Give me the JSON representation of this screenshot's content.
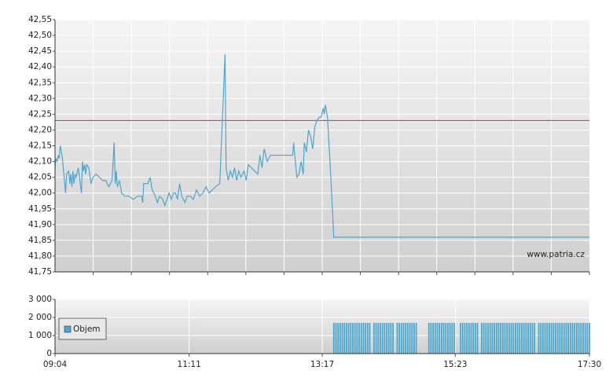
{
  "chart_data": [
    {
      "type": "line",
      "watermark": "www.patria.cz",
      "color": "#4da6cf",
      "reference_line": {
        "value": 42.23,
        "color": "#cc3333"
      },
      "xlim": [
        "09:04",
        "17:30"
      ],
      "ylim": [
        41.75,
        42.55
      ],
      "yticks": [
        {
          "value": 41.75,
          "label": "41,75"
        },
        {
          "value": 41.8,
          "label": "41,80"
        },
        {
          "value": 41.85,
          "label": "41,85"
        },
        {
          "value": 41.9,
          "label": "41,90"
        },
        {
          "value": 41.95,
          "label": "41,95"
        },
        {
          "value": 42.0,
          "label": "42,00"
        },
        {
          "value": 42.05,
          "label": "42,05"
        },
        {
          "value": 42.1,
          "label": "42,10"
        },
        {
          "value": 42.15,
          "label": "42,15"
        },
        {
          "value": 42.2,
          "label": "42,20"
        },
        {
          "value": 42.25,
          "label": "42,25"
        },
        {
          "value": 42.3,
          "label": "42,30"
        },
        {
          "value": 42.35,
          "label": "42,35"
        },
        {
          "value": 42.4,
          "label": "42,40"
        },
        {
          "value": 42.45,
          "label": "42,45"
        },
        {
          "value": 42.5,
          "label": "42,50"
        },
        {
          "value": 42.55,
          "label": "42,55"
        }
      ],
      "grid": true,
      "x": [
        "09:04",
        "09:05",
        "09:06",
        "09:07",
        "09:08",
        "09:09",
        "09:11",
        "09:14",
        "09:15",
        "09:17",
        "09:18",
        "09:19",
        "09:20",
        "09:21",
        "09:22",
        "09:23",
        "09:24",
        "09:26",
        "09:29",
        "09:30",
        "09:31",
        "09:32",
        "09:33",
        "09:34",
        "09:36",
        "09:38",
        "09:40",
        "09:43",
        "09:46",
        "09:49",
        "09:52",
        "09:55",
        "09:58",
        "10:00",
        "10:01",
        "10:02",
        "10:03",
        "10:05",
        "10:07",
        "10:10",
        "10:14",
        "10:18",
        "10:22",
        "10:26",
        "10:27",
        "10:28",
        "10:32",
        "10:34",
        "10:36",
        "10:39",
        "10:41",
        "10:43",
        "10:46",
        "10:48",
        "10:50",
        "10:52",
        "10:54",
        "10:56",
        "10:58",
        "11:00",
        "11:02",
        "11:04",
        "11:07",
        "11:09",
        "11:12",
        "11:15",
        "11:18",
        "11:21",
        "11:24",
        "11:27",
        "11:30",
        "11:33",
        "11:36",
        "11:40",
        "11:45",
        "11:46",
        "11:48",
        "11:50",
        "11:52",
        "11:54",
        "11:56",
        "11:58",
        "12:00",
        "12:03",
        "12:05",
        "12:07",
        "12:10",
        "12:13",
        "12:16",
        "12:18",
        "12:20",
        "12:22",
        "12:25",
        "12:28",
        "12:32",
        "12:49",
        "12:50",
        "12:51",
        "12:53",
        "12:55",
        "12:57",
        "12:59",
        "13:00",
        "13:02",
        "13:04",
        "13:06",
        "13:08",
        "13:10",
        "13:12",
        "13:14",
        "13:16",
        "13:18",
        "13:19",
        "13:20",
        "13:22",
        "13:25",
        "13:28",
        "17:30"
      ],
      "values": [
        42.08,
        42.11,
        42.1,
        42.12,
        42.11,
        42.15,
        42.11,
        42.0,
        42.06,
        42.07,
        42.03,
        42.06,
        42.02,
        42.07,
        42.03,
        42.06,
        42.05,
        42.08,
        42.0,
        42.1,
        42.07,
        42.09,
        42.06,
        42.09,
        42.08,
        42.03,
        42.05,
        42.06,
        42.05,
        42.04,
        42.04,
        42.02,
        42.04,
        42.16,
        42.03,
        42.07,
        42.02,
        42.04,
        42.0,
        41.99,
        41.99,
        41.98,
        41.99,
        41.99,
        41.97,
        42.03,
        42.03,
        42.05,
        42.01,
        41.99,
        41.97,
        41.99,
        41.98,
        41.96,
        41.98,
        42.0,
        41.98,
        42.0,
        42.0,
        41.98,
        42.03,
        41.99,
        41.97,
        41.99,
        41.99,
        41.98,
        42.01,
        41.99,
        42.0,
        42.02,
        42.0,
        42.01,
        42.02,
        42.03,
        42.44,
        42.08,
        42.04,
        42.07,
        42.05,
        42.08,
        42.04,
        42.07,
        42.05,
        42.07,
        42.04,
        42.09,
        42.08,
        42.07,
        42.06,
        42.12,
        42.08,
        42.14,
        42.1,
        42.12,
        42.12,
        42.12,
        42.16,
        42.12,
        42.05,
        42.06,
        42.1,
        42.06,
        42.16,
        42.13,
        42.2,
        42.18,
        42.14,
        42.21,
        42.23,
        42.24,
        42.24,
        42.27,
        42.25,
        42.28,
        42.24,
        42.06,
        41.86,
        41.86
      ]
    },
    {
      "type": "bar",
      "xlim": [
        "09:04",
        "17:30"
      ],
      "xticks": [
        "09:04",
        "11:11",
        "13:17",
        "15:23",
        "17:30"
      ],
      "ylim": [
        0,
        3000
      ],
      "yticks": [
        0,
        {
          "value": 1000,
          "label": "1 000"
        },
        {
          "value": 2000,
          "label": "2 000"
        },
        {
          "value": 3000,
          "label": "3 000"
        }
      ],
      "grid": true,
      "legend": "upper left",
      "x": [
        "13:28",
        "13:30",
        "13:32",
        "13:34",
        "13:36",
        "13:38",
        "13:40",
        "13:42",
        "13:44",
        "13:46",
        "13:48",
        "13:50",
        "13:52",
        "13:54",
        "13:56",
        "13:58",
        "14:00",
        "14:02",
        "14:06",
        "14:08",
        "14:10",
        "14:12",
        "14:14",
        "14:16",
        "14:18",
        "14:20",
        "14:22",
        "14:24",
        "14:28",
        "14:30",
        "14:32",
        "14:34",
        "14:36",
        "14:38",
        "14:40",
        "14:42",
        "14:44",
        "14:46",
        "14:58",
        "15:00",
        "15:02",
        "15:04",
        "15:06",
        "15:08",
        "15:10",
        "15:12",
        "15:14",
        "15:16",
        "15:18",
        "15:20",
        "15:22",
        "15:28",
        "15:30",
        "15:32",
        "15:34",
        "15:36",
        "15:38",
        "15:40",
        "15:42",
        "15:44",
        "15:48",
        "15:50",
        "15:52",
        "15:54",
        "15:56",
        "15:58",
        "16:00",
        "16:02",
        "16:04",
        "16:06",
        "16:08",
        "16:10",
        "16:12",
        "16:14",
        "16:16",
        "16:18",
        "16:20",
        "16:22",
        "16:24",
        "16:26",
        "16:28",
        "16:30",
        "16:32",
        "16:34",
        "16:36",
        "16:38",
        "16:42",
        "16:44",
        "16:46",
        "16:48",
        "16:50",
        "16:52",
        "16:54",
        "16:56",
        "16:58",
        "17:00",
        "17:02",
        "17:04",
        "17:06",
        "17:08",
        "17:10",
        "17:12",
        "17:14",
        "17:16",
        "17:18",
        "17:20",
        "17:22",
        "17:24",
        "17:26",
        "17:28",
        "17:30"
      ],
      "series": [
        {
          "name": "Objem",
          "color": "#4aa8d0",
          "values": [
            1700,
            1700,
            1700,
            1700,
            1700,
            1700,
            1700,
            1700,
            1700,
            1700,
            1700,
            1700,
            1700,
            1700,
            1700,
            1700,
            1700,
            1700,
            1700,
            1700,
            1700,
            1700,
            1700,
            1700,
            1700,
            1700,
            1700,
            1700,
            1700,
            1700,
            1700,
            1700,
            1700,
            1700,
            1700,
            1700,
            1700,
            1700,
            1700,
            1700,
            1700,
            1700,
            1700,
            1700,
            1700,
            1700,
            1700,
            1700,
            1700,
            1700,
            1700,
            1700,
            1700,
            1700,
            1700,
            1700,
            1700,
            1700,
            1700,
            1700,
            1700,
            1700,
            1700,
            1700,
            1700,
            1700,
            1700,
            1700,
            1700,
            1700,
            1700,
            1700,
            1700,
            1700,
            1700,
            1700,
            1700,
            1700,
            1700,
            1700,
            1700,
            1700,
            1700,
            1700,
            1700,
            1700,
            1700,
            1700,
            1700,
            1700,
            1700,
            1700,
            1700,
            1700,
            1700,
            1700,
            1700,
            1700,
            1700,
            1700,
            1700,
            1700,
            1700,
            1700,
            1700,
            1700,
            1700,
            1700,
            1700,
            1700,
            1700
          ]
        }
      ]
    }
  ]
}
